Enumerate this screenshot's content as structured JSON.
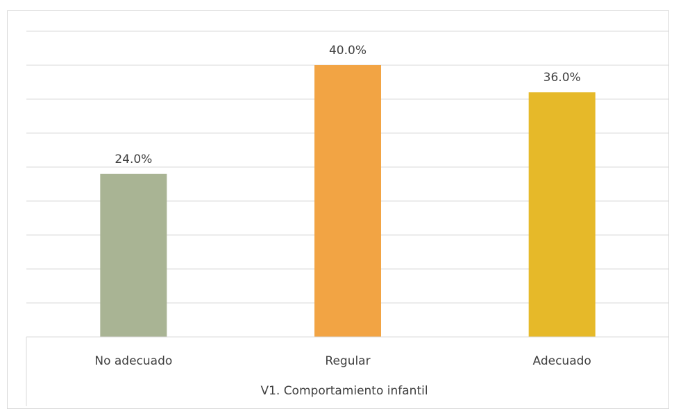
{
  "chart_data": {
    "type": "bar",
    "categories": [
      "No adecuado",
      "Regular",
      "Adecuado"
    ],
    "values": [
      24.0,
      40.0,
      36.0
    ],
    "data_labels": [
      "24.0%",
      "40.0%",
      "36.0%"
    ],
    "colors": [
      "#a9b494",
      "#f2a444",
      "#e6b929"
    ],
    "xlabel": "V1. Comportamiento infantil",
    "ylabel": "",
    "ylim": [
      0,
      45
    ],
    "grid": true,
    "legend": "none"
  }
}
